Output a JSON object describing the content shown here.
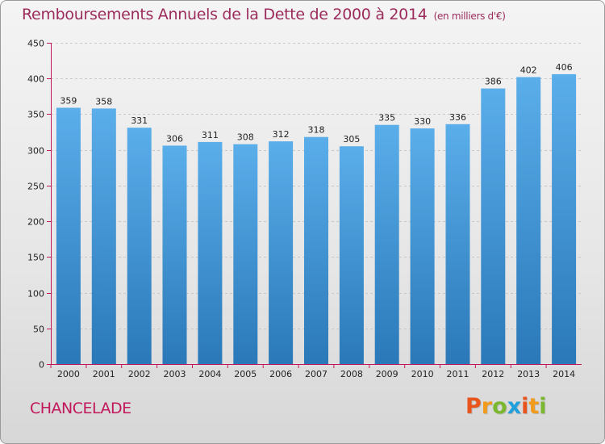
{
  "header": {
    "title": "Remboursements Annuels de la Dette de 2000 à 2014",
    "subtitle": "(en milliers d'€)"
  },
  "footer": {
    "commune": "CHANCELADE",
    "logo_letters": [
      "P",
      "r",
      "o",
      "x",
      "i",
      "t",
      "i"
    ],
    "logo_colors": [
      "#e8541c",
      "#f29a1a",
      "#7cb82f",
      "#1fa0dc",
      "#e8541c",
      "#f29a1a",
      "#7cb82f"
    ]
  },
  "colors": {
    "title": "#9b2c5c",
    "bar_top": "#5aaeea",
    "bar_bottom": "#2a78b8",
    "axis": "#c2185b",
    "grid": "#c8c8c8"
  },
  "chart_data": {
    "type": "bar",
    "title": "Remboursements Annuels de la Dette de 2000 à 2014",
    "ylabel": "(en milliers d'€)",
    "xlabel": "",
    "categories": [
      "2000",
      "2001",
      "2002",
      "2003",
      "2004",
      "2005",
      "2006",
      "2007",
      "2008",
      "2009",
      "2010",
      "2011",
      "2012",
      "2013",
      "2014"
    ],
    "values": [
      359,
      358,
      331,
      306,
      311,
      308,
      312,
      318,
      305,
      335,
      330,
      336,
      386,
      402,
      406
    ],
    "ylim": [
      0,
      450
    ],
    "yticks": [
      0,
      50,
      100,
      150,
      200,
      250,
      300,
      350,
      400,
      450
    ],
    "grid": true
  }
}
